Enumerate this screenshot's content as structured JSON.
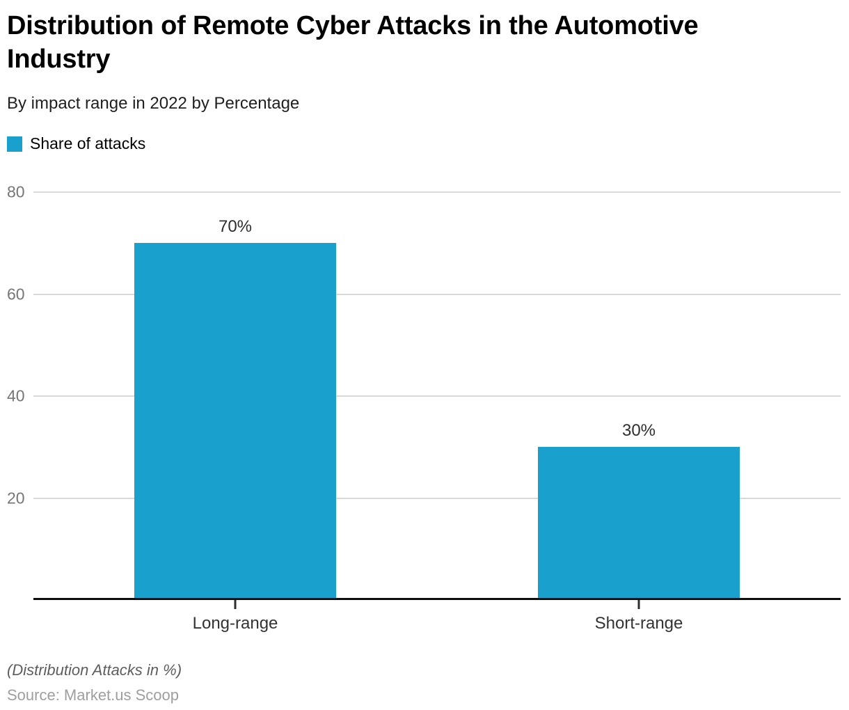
{
  "header": {
    "title": "Distribution of Remote Cyber Attacks in the Automotive Industry",
    "subtitle": "By impact range in 2022 by Percentage"
  },
  "legend": {
    "label": "Share of attacks",
    "swatch_color": "#19a0cd"
  },
  "chart_data": {
    "type": "bar",
    "title": "Distribution of Remote Cyber Attacks in the Automotive Industry",
    "subtitle": "By impact range in 2022 by Percentage",
    "series_name": "Share of attacks",
    "categories": [
      "Long-range",
      "Short-range"
    ],
    "values": [
      70,
      30
    ],
    "value_labels": [
      "70%",
      "30%"
    ],
    "xlabel": "",
    "ylabel": "",
    "ylim": [
      0,
      80
    ],
    "yticks": [
      20,
      40,
      60,
      80
    ],
    "grid": "horizontal",
    "legend_position": "top-left",
    "colors": {
      "bar": "#19a0cd",
      "gridline": "#d9d9d9",
      "axis_line": "#0d0d0d",
      "ytick_label": "#767676",
      "value_label": "#2e2e2e",
      "category_label": "#333333"
    }
  },
  "footer": {
    "note": "(Distribution Attacks in %)",
    "source": "Source: Market.us Scoop"
  }
}
